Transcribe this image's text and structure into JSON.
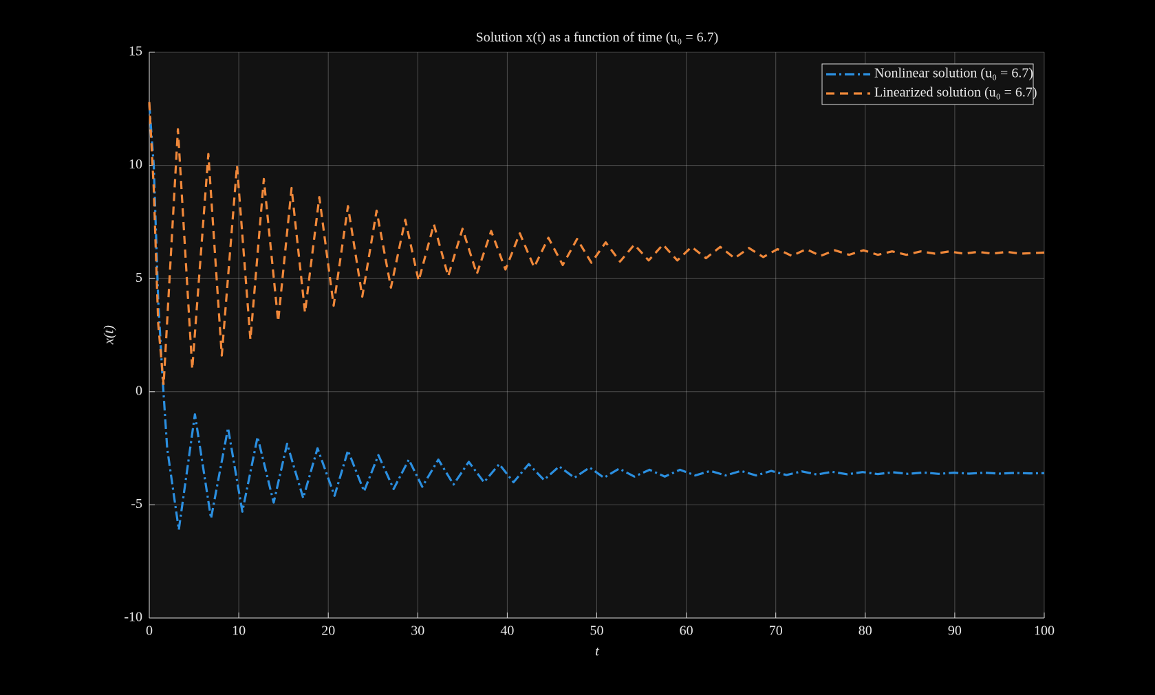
{
  "chart_data": {
    "type": "line",
    "title": "Solution x(t) as a function of time (u₀ = 6.7)",
    "xlabel": "t",
    "ylabel": "x(t)",
    "xlim": [
      0,
      100
    ],
    "ylim": [
      -10,
      15
    ],
    "xticks": [
      0,
      10,
      20,
      30,
      40,
      50,
      60,
      70,
      80,
      90,
      100
    ],
    "yticks": [
      -10,
      -5,
      0,
      5,
      10,
      15
    ],
    "grid": true,
    "legend": "upper right",
    "series": [
      {
        "name": "Nonlinear solution (u₀ = 6.7)",
        "color": "#2b8fe0",
        "linestyle": "-.",
        "x": [
          0,
          0.5,
          1.0,
          1.5,
          2.0,
          3.3,
          5.1,
          6.9,
          8.8,
          10.4,
          12.1,
          13.9,
          15.4,
          17.2,
          18.8,
          20.7,
          22.2,
          24.0,
          25.6,
          27.3,
          29.0,
          30.5,
          32.3,
          34.0,
          35.7,
          37.4,
          39.1,
          40.7,
          42.4,
          44.1,
          45.8,
          47.5,
          49.2,
          50.8,
          52.5,
          54.2,
          55.9,
          57.6,
          59.3,
          61.0,
          62.7,
          64.4,
          66.1,
          67.8,
          69.5,
          71.2,
          72.9,
          74.6,
          76.3,
          78.0,
          79.7,
          81.4,
          83.1,
          84.8,
          86.5,
          88.2,
          89.9,
          91.6,
          93.3,
          95.0,
          96.7,
          98.4,
          100
        ],
        "values": [
          12.7,
          10,
          4,
          0.5,
          -2.5,
          -6.1,
          -1.0,
          -5.6,
          -1.6,
          -5.3,
          -2.0,
          -4.9,
          -2.3,
          -4.7,
          -2.5,
          -4.6,
          -2.6,
          -4.4,
          -2.8,
          -4.3,
          -3.0,
          -4.2,
          -3.0,
          -4.1,
          -3.1,
          -4.0,
          -3.2,
          -4.0,
          -3.2,
          -3.9,
          -3.3,
          -3.8,
          -3.35,
          -3.8,
          -3.4,
          -3.75,
          -3.45,
          -3.75,
          -3.45,
          -3.7,
          -3.5,
          -3.7,
          -3.5,
          -3.7,
          -3.5,
          -3.68,
          -3.52,
          -3.66,
          -3.54,
          -3.65,
          -3.55,
          -3.64,
          -3.56,
          -3.63,
          -3.57,
          -3.63,
          -3.58,
          -3.62,
          -3.58,
          -3.62,
          -3.59,
          -3.61,
          -3.6
        ]
      },
      {
        "name": "Linearized solution (u₀ = 6.7)",
        "color": "#f0883a",
        "linestyle": "--",
        "x": [
          0,
          0.5,
          1.0,
          1.6,
          3.2,
          4.8,
          6.6,
          8.1,
          9.8,
          11.3,
          12.8,
          14.4,
          15.9,
          17.4,
          19.0,
          20.6,
          22.2,
          23.8,
          25.4,
          27.0,
          28.6,
          30.1,
          31.8,
          33.4,
          35.0,
          36.6,
          38.2,
          39.8,
          41.4,
          43.0,
          44.6,
          46.2,
          47.8,
          49.4,
          51.0,
          52.6,
          54.2,
          55.8,
          57.4,
          59.0,
          60.6,
          62.2,
          63.8,
          65.4,
          67.0,
          68.6,
          70.2,
          71.8,
          73.4,
          75.0,
          76.6,
          78.2,
          79.8,
          81.4,
          83.0,
          84.6,
          86.2,
          87.8,
          89.4,
          91.0,
          92.6,
          94.2,
          95.8,
          97.4,
          100
        ],
        "values": [
          12.8,
          9,
          3,
          0.3,
          11.6,
          1.0,
          10.5,
          1.6,
          10.0,
          2.3,
          9.4,
          3.1,
          9.0,
          3.5,
          8.6,
          3.8,
          8.2,
          4.2,
          8.0,
          4.6,
          7.6,
          4.9,
          7.4,
          5.1,
          7.2,
          5.2,
          7.1,
          5.4,
          7.0,
          5.5,
          6.8,
          5.6,
          6.75,
          5.7,
          6.6,
          5.75,
          6.5,
          5.8,
          6.5,
          5.8,
          6.4,
          5.9,
          6.4,
          5.9,
          6.35,
          5.95,
          6.3,
          6.0,
          6.3,
          6.0,
          6.25,
          6.05,
          6.25,
          6.05,
          6.2,
          6.05,
          6.2,
          6.1,
          6.2,
          6.1,
          6.18,
          6.1,
          6.18,
          6.1,
          6.15
        ]
      }
    ]
  }
}
